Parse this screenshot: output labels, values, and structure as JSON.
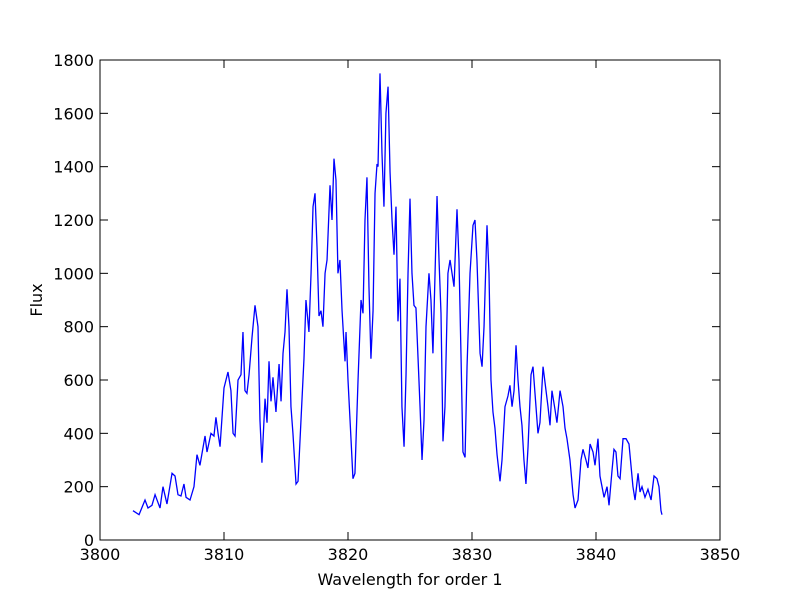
{
  "chart_data": {
    "type": "line",
    "xlabel": "Wavelength for order 1",
    "ylabel": "Flux",
    "color": "#0000ff",
    "x": [
      3802.66,
      3803.15,
      3803.63,
      3803.87,
      3804.19,
      3804.44,
      3804.68,
      3804.84,
      3805.08,
      3805.4,
      3805.81,
      3806.05,
      3806.29,
      3806.53,
      3806.77,
      3806.94,
      3807.26,
      3807.58,
      3807.82,
      3808.06,
      3808.47,
      3808.63,
      3808.95,
      3809.19,
      3809.35,
      3809.52,
      3809.68,
      3810.0,
      3810.32,
      3810.56,
      3810.73,
      3810.89,
      3811.13,
      3811.37,
      3811.53,
      3811.69,
      3811.85,
      3812.02,
      3812.26,
      3812.5,
      3812.74,
      3812.9,
      3813.06,
      3813.31,
      3813.47,
      3813.63,
      3813.79,
      3813.95,
      3814.19,
      3814.44,
      3814.6,
      3814.76,
      3814.92,
      3815.08,
      3815.24,
      3815.4,
      3815.56,
      3815.81,
      3815.97,
      3816.21,
      3816.45,
      3816.61,
      3816.85,
      3817.02,
      3817.18,
      3817.34,
      3817.5,
      3817.66,
      3817.82,
      3817.98,
      3818.15,
      3818.31,
      3818.55,
      3818.71,
      3818.87,
      3819.03,
      3819.19,
      3819.35,
      3819.52,
      3819.76,
      3819.84,
      3820.0,
      3820.24,
      3820.4,
      3820.56,
      3820.81,
      3821.05,
      3821.21,
      3821.37,
      3821.53,
      3821.69,
      3821.85,
      3822.02,
      3822.18,
      3822.34,
      3822.42,
      3822.58,
      3822.74,
      3822.9,
      3823.06,
      3823.23,
      3823.39,
      3823.55,
      3823.71,
      3823.87,
      3824.03,
      3824.19,
      3824.35,
      3824.52,
      3824.68,
      3824.84,
      3825.0,
      3825.16,
      3825.32,
      3825.48,
      3825.65,
      3825.81,
      3825.97,
      3826.13,
      3826.29,
      3826.53,
      3826.69,
      3826.85,
      3827.02,
      3827.18,
      3827.34,
      3827.5,
      3827.66,
      3827.82,
      3828.06,
      3828.23,
      3828.39,
      3828.55,
      3828.79,
      3828.95,
      3829.11,
      3829.27,
      3829.44,
      3829.6,
      3829.84,
      3830.08,
      3830.24,
      3830.4,
      3830.65,
      3830.81,
      3830.97,
      3831.21,
      3831.37,
      3831.53,
      3831.69,
      3831.85,
      3832.02,
      3832.26,
      3832.42,
      3832.66,
      3832.9,
      3833.06,
      3833.23,
      3833.39,
      3833.55,
      3833.71,
      3833.87,
      3834.03,
      3834.19,
      3834.35,
      3834.52,
      3834.76,
      3834.92,
      3835.08,
      3835.32,
      3835.48,
      3835.73,
      3835.97,
      3836.13,
      3836.29,
      3836.45,
      3836.69,
      3836.85,
      3837.1,
      3837.34,
      3837.5,
      3837.66,
      3837.9,
      3838.15,
      3838.31,
      3838.55,
      3838.79,
      3838.95,
      3839.19,
      3839.35,
      3839.52,
      3839.76,
      3839.92,
      3840.16,
      3840.32,
      3840.65,
      3840.89,
      3841.05,
      3841.29,
      3841.45,
      3841.61,
      3841.77,
      3841.94,
      3842.18,
      3842.42,
      3842.66,
      3842.82,
      3842.98,
      3843.15,
      3843.39,
      3843.55,
      3843.71,
      3843.95,
      3844.19,
      3844.44,
      3844.68,
      3844.92,
      3845.08,
      3845.24,
      3845.32
    ],
    "values": [
      110,
      95,
      150,
      120,
      130,
      170,
      140,
      120,
      200,
      135,
      250,
      240,
      170,
      165,
      210,
      160,
      150,
      200,
      320,
      280,
      390,
      330,
      400,
      390,
      460,
      400,
      350,
      570,
      630,
      560,
      400,
      390,
      600,
      620,
      780,
      560,
      550,
      620,
      760,
      880,
      800,
      450,
      290,
      530,
      440,
      670,
      520,
      610,
      480,
      660,
      520,
      700,
      780,
      940,
      800,
      500,
      400,
      210,
      220,
      450,
      680,
      900,
      780,
      1000,
      1250,
      1300,
      1100,
      840,
      860,
      800,
      1000,
      1050,
      1330,
      1200,
      1430,
      1350,
      1000,
      1050,
      860,
      670,
      780,
      600,
      380,
      230,
      250,
      600,
      900,
      850,
      1200,
      1360,
      950,
      680,
      860,
      1300,
      1410,
      1400,
      1750,
      1450,
      1250,
      1600,
      1700,
      1380,
      1200,
      1070,
      1250,
      820,
      980,
      500,
      350,
      620,
      1000,
      1280,
      1000,
      880,
      870,
      680,
      500,
      300,
      450,
      800,
      1000,
      900,
      700,
      1000,
      1290,
      1050,
      850,
      370,
      500,
      1000,
      1050,
      1000,
      950,
      1240,
      1050,
      700,
      330,
      310,
      650,
      1000,
      1180,
      1200,
      1050,
      700,
      650,
      800,
      1180,
      1000,
      600,
      480,
      420,
      320,
      220,
      300,
      500,
      540,
      580,
      500,
      560,
      730,
      600,
      500,
      430,
      300,
      210,
      350,
      620,
      650,
      550,
      400,
      440,
      650,
      560,
      500,
      430,
      560,
      490,
      440,
      560,
      500,
      420,
      380,
      300,
      170,
      120,
      150,
      300,
      340,
      300,
      270,
      360,
      330,
      280,
      380,
      240,
      160,
      200,
      130,
      260,
      340,
      330,
      240,
      230,
      380,
      380,
      360,
      280,
      200,
      150,
      250,
      180,
      200,
      160,
      190,
      150,
      240,
      230,
      200,
      110,
      95
    ],
    "xlim": [
      3800,
      3850
    ],
    "xticks": [
      3800,
      3810,
      3820,
      3830,
      3840,
      3850
    ],
    "ylim": [
      0,
      1800
    ],
    "yticks": [
      0,
      200,
      400,
      600,
      800,
      1000,
      1200,
      1400,
      1600,
      1800
    ]
  }
}
